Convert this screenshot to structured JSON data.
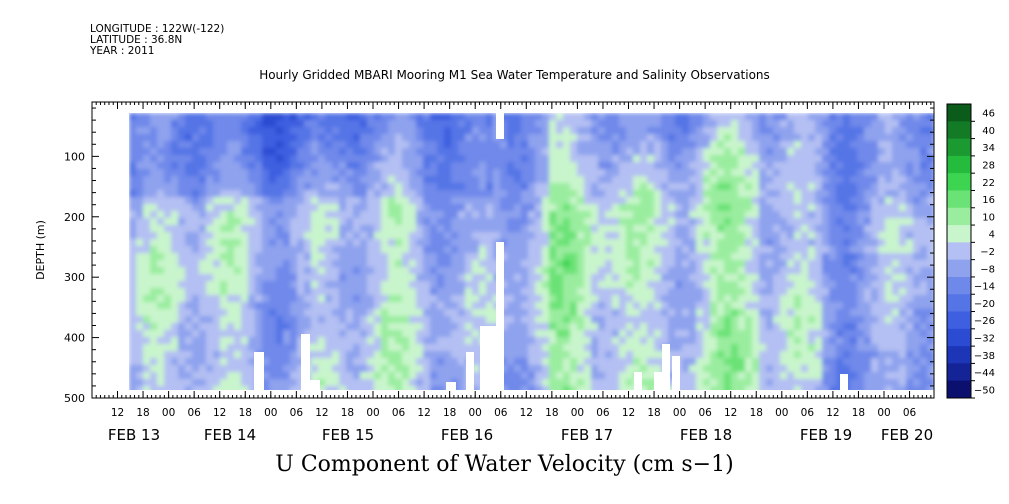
{
  "header": {
    "longitude": "LONGITUDE : 122W(-122)",
    "latitude": "LATITUDE : 36.8N",
    "year": "YEAR : 2011"
  },
  "chart_title": "Hourly Gridded MBARI Mooring M1 Sea Water Temperature and Salinity Observations",
  "bottom_title": "U Component of Water Velocity (cm s−1)",
  "chart_data": {
    "type": "heatmap",
    "title": "Hourly Gridded MBARI Mooring M1 Sea Water Temperature and Salinity Observations",
    "xlabel": "U Component of Water Velocity (cm s−1)",
    "ylabel": "DEPTH (m)",
    "ylim": [
      500,
      10
    ],
    "y_ticks": [
      100,
      200,
      300,
      400,
      500
    ],
    "x_hour_ticks": [
      "12",
      "18",
      "00",
      "06",
      "12",
      "18",
      "00",
      "06",
      "12",
      "18",
      "00",
      "06",
      "12",
      "18",
      "00",
      "06",
      "12",
      "18",
      "00",
      "06",
      "12",
      "18",
      "00",
      "06",
      "12",
      "18",
      "00",
      "06",
      "12",
      "18",
      "00",
      "06"
    ],
    "x_date_labels": [
      "FEB 13",
      "FEB 14",
      "FEB 15",
      "FEB 16",
      "FEB 17",
      "FEB 18",
      "FEB 19",
      "FEB 20"
    ],
    "colorbar_levels": [
      46,
      40,
      34,
      28,
      22,
      16,
      10,
      4,
      -2,
      -8,
      -14,
      -20,
      -26,
      -32,
      -38,
      -44,
      -50
    ],
    "colorbar_labels": [
      "46",
      "40",
      "34",
      "28",
      "22",
      "16",
      "10",
      "4",
      "−2",
      "−8",
      "−14",
      "−20",
      "−26",
      "−32",
      "−38",
      "−44",
      "−50"
    ],
    "colors": {
      "strong_positive": "#0b4d1f",
      "positive": "#2dc23c",
      "weak_positive": "#8fe89a",
      "weak_negative": "#b8c4f2",
      "negative": "#4a67e0",
      "strong_negative": "#0d1a8a"
    }
  }
}
